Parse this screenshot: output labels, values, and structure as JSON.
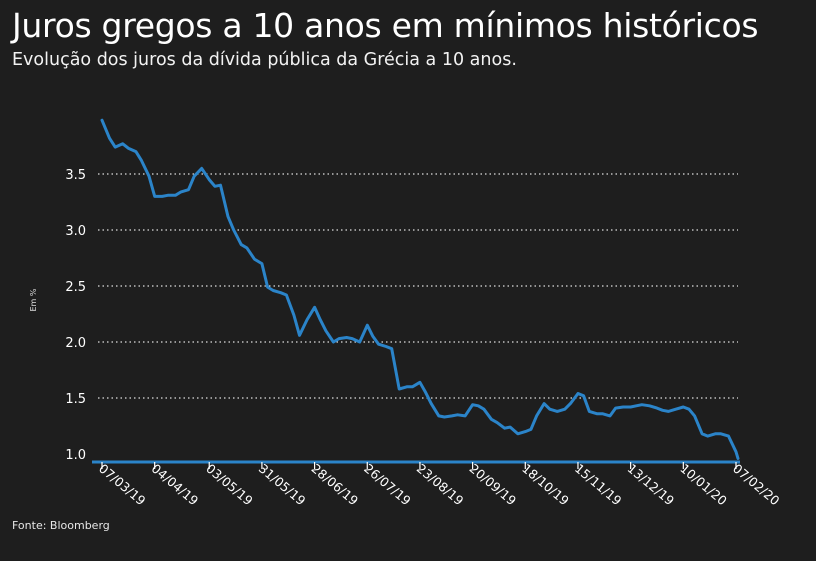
{
  "header": {
    "title": "Juros gregos a 10 anos em mínimos históricos",
    "subtitle": "Evolução dos juros da dívida pública da Grécia a 10 anos."
  },
  "footer": {
    "source": "Fonte: Bloomberg"
  },
  "colors": {
    "background": "#1e1e1e",
    "line": "#2b84c9",
    "grid": "#dddddd"
  },
  "chart_data": {
    "type": "line",
    "title": "Juros gregos a 10 anos em mínimos históricos",
    "subtitle": "Evolução dos juros da dívida pública da Grécia a 10 anos.",
    "xlabel": "",
    "ylabel": "Em %",
    "ylim": [
      0.95,
      4.0
    ],
    "y_ticks": [
      "1.0",
      "1.5",
      "2.0",
      "2.5",
      "3.0",
      "3.5"
    ],
    "x_ticks": [
      "07/03/19",
      "04/04/19",
      "03/05/19",
      "31/05/19",
      "28/06/19",
      "26/07/19",
      "23/08/19",
      "20/09/19",
      "18/10/19",
      "15/11/19",
      "13/12/19",
      "10/01/20",
      "07/02/20"
    ],
    "grid": "horizontal-dotted",
    "legend": "none",
    "series": [
      {
        "name": "",
        "x": [
          "07/03/19",
          "11/03/19",
          "14/03/19",
          "18/03/19",
          "21/03/19",
          "25/03/19",
          "28/03/19",
          "01/04/19",
          "04/04/19",
          "08/04/19",
          "11/04/19",
          "15/04/19",
          "18/04/19",
          "22/04/19",
          "25/04/19",
          "29/04/19",
          "03/05/19",
          "06/05/19",
          "09/05/19",
          "13/05/19",
          "16/05/19",
          "20/05/19",
          "23/05/19",
          "27/05/19",
          "31/05/19",
          "03/06/19",
          "06/06/19",
          "10/06/19",
          "13/06/19",
          "17/06/19",
          "20/06/19",
          "24/06/19",
          "28/06/19",
          "01/07/19",
          "04/07/19",
          "08/07/19",
          "11/07/19",
          "15/07/19",
          "18/07/19",
          "22/07/19",
          "26/07/19",
          "29/07/19",
          "01/08/19",
          "05/08/19",
          "08/08/19",
          "12/08/19",
          "16/08/19",
          "19/08/19",
          "23/08/19",
          "26/08/19",
          "29/08/19",
          "02/09/19",
          "05/09/19",
          "09/09/19",
          "12/09/19",
          "16/09/19",
          "20/09/19",
          "23/09/19",
          "26/09/19",
          "30/09/19",
          "03/10/19",
          "07/10/19",
          "10/10/19",
          "14/10/19",
          "18/10/19",
          "21/10/19",
          "24/10/19",
          "28/10/19",
          "31/10/19",
          "04/11/19",
          "08/11/19",
          "11/11/19",
          "15/11/19",
          "18/11/19",
          "21/11/19",
          "25/11/19",
          "28/11/19",
          "02/12/19",
          "05/12/19",
          "09/12/19",
          "13/12/19",
          "16/12/19",
          "19/12/19",
          "23/12/19",
          "27/12/19",
          "30/12/19",
          "02/01/20",
          "06/01/20",
          "10/01/20",
          "13/01/20",
          "16/01/20",
          "20/01/20",
          "23/01/20",
          "27/01/20",
          "30/01/20",
          "03/02/20",
          "07/02/20",
          "10/02/20"
        ],
        "values": [
          3.98,
          3.82,
          3.74,
          3.77,
          3.73,
          3.7,
          3.62,
          3.48,
          3.3,
          3.3,
          3.31,
          3.31,
          3.34,
          3.36,
          3.48,
          3.55,
          3.45,
          3.39,
          3.4,
          3.12,
          3.0,
          2.87,
          2.84,
          2.74,
          2.7,
          2.49,
          2.46,
          2.44,
          2.42,
          2.24,
          2.06,
          2.2,
          2.31,
          2.2,
          2.1,
          2.0,
          2.03,
          2.04,
          2.03,
          2.0,
          2.15,
          2.05,
          1.98,
          1.96,
          1.94,
          1.58,
          1.6,
          1.6,
          1.64,
          1.55,
          1.45,
          1.34,
          1.33,
          1.34,
          1.35,
          1.34,
          1.44,
          1.43,
          1.4,
          1.31,
          1.28,
          1.23,
          1.24,
          1.18,
          1.2,
          1.22,
          1.34,
          1.45,
          1.4,
          1.38,
          1.4,
          1.45,
          1.54,
          1.52,
          1.38,
          1.36,
          1.36,
          1.34,
          1.41,
          1.42,
          1.42,
          1.43,
          1.44,
          1.43,
          1.41,
          1.39,
          1.38,
          1.4,
          1.42,
          1.4,
          1.34,
          1.18,
          1.16,
          1.18,
          1.18,
          1.16,
          1.02,
          0.96
        ]
      }
    ]
  }
}
